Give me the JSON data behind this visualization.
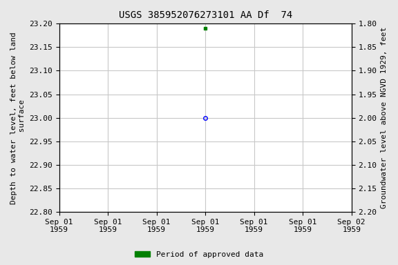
{
  "title": "USGS 385952076273101 AA Df  74",
  "left_ylabel": "Depth to water level, feet below land\n surface",
  "right_ylabel": "Groundwater level above NGVD 1929, feet",
  "xlabel_dates": [
    "Sep 01\n1959",
    "Sep 01\n1959",
    "Sep 01\n1959",
    "Sep 01\n1959",
    "Sep 01\n1959",
    "Sep 01\n1959",
    "Sep 02\n1959"
  ],
  "ylim_left_top": 22.8,
  "ylim_left_bottom": 23.2,
  "ylim_right_top": 2.2,
  "ylim_right_bottom": 1.8,
  "left_yticks": [
    22.8,
    22.85,
    22.9,
    22.95,
    23.0,
    23.05,
    23.1,
    23.15,
    23.2
  ],
  "right_yticks": [
    2.2,
    2.15,
    2.1,
    2.05,
    2.0,
    1.95,
    1.9,
    1.85,
    1.8
  ],
  "point_x": 3.0,
  "point_y_circle": 23.0,
  "point_y_square": 23.19,
  "circle_color": "blue",
  "square_color": "green",
  "grid_color": "#c8c8c8",
  "bg_color": "#e8e8e8",
  "plot_bg_color": "white",
  "legend_label": "Period of approved data",
  "legend_color": "green",
  "title_fontsize": 10,
  "label_fontsize": 8,
  "tick_fontsize": 8,
  "x_min": 0,
  "x_max": 6
}
